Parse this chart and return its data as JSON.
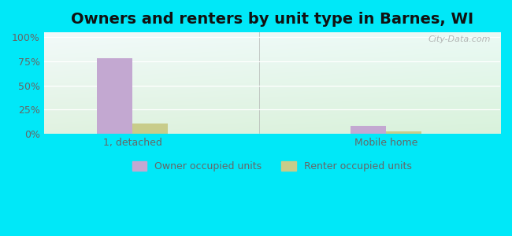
{
  "title": "Owners and renters by unit type in Barnes, WI",
  "categories": [
    "1, detached",
    "Mobile home"
  ],
  "owner_values": [
    78,
    8
  ],
  "renter_values": [
    11,
    3
  ],
  "owner_color": "#c3a8d1",
  "renter_color": "#c8cc8a",
  "yticks": [
    0,
    25,
    50,
    75,
    100
  ],
  "ytick_labels": [
    "0%",
    "25%",
    "50%",
    "75%",
    "100%"
  ],
  "ylim": [
    0,
    105
  ],
  "background_outer": "#00e8f8",
  "legend_owner": "Owner occupied units",
  "legend_renter": "Renter occupied units",
  "title_fontsize": 14,
  "tick_color": "#666666",
  "bar_width": 0.28,
  "x_positions": [
    1.0,
    3.0
  ],
  "xlim": [
    0.3,
    3.9
  ]
}
